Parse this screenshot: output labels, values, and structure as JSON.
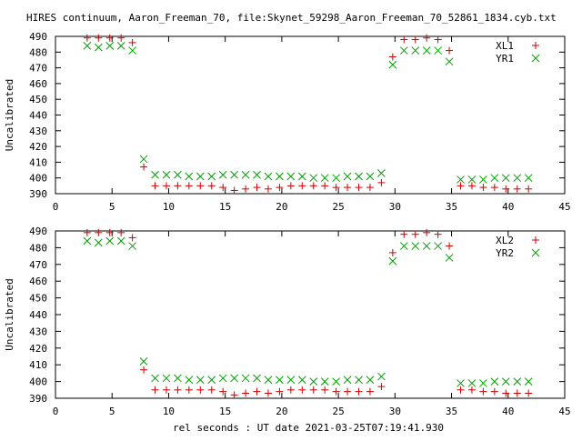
{
  "title": "HIRES continuum, Aaron_Freeman_70, file:Skynet_59298_Aaron_Freeman_70_52861_1834.cyb.txt",
  "xlabel": "rel seconds : UT date 2021-03-25T07:19:41.930",
  "colors": {
    "plus": "#cc0000",
    "cross": "#00a000",
    "axis": "#000000"
  },
  "chart_data": [
    {
      "type": "scatter",
      "ylabel": "Uncalibrated",
      "xlim": [
        0,
        45
      ],
      "ylim": [
        390,
        490
      ],
      "xticks": [
        0,
        5,
        10,
        15,
        20,
        25,
        30,
        35,
        40,
        45
      ],
      "yticks": [
        390,
        400,
        410,
        420,
        430,
        440,
        450,
        460,
        470,
        480,
        490
      ],
      "grid": false,
      "legend_position": "top-right",
      "series": [
        {
          "name": "XL1",
          "marker": "plus",
          "color": "#cc0000",
          "x": [
            2.8,
            3.8,
            4.8,
            5.8,
            6.8,
            7.8,
            8.8,
            9.8,
            10.8,
            11.8,
            12.8,
            13.8,
            14.8,
            15.8,
            16.8,
            17.8,
            18.8,
            19.8,
            20.8,
            21.8,
            22.8,
            23.8,
            24.8,
            25.8,
            26.8,
            27.8,
            28.8,
            29.8,
            30.8,
            31.8,
            32.8,
            33.8,
            34.8,
            35.8,
            36.8,
            37.8,
            38.8,
            39.8,
            40.8,
            41.8
          ],
          "y": [
            489,
            489,
            489,
            489,
            486,
            407,
            395,
            395,
            395,
            395,
            395,
            395,
            394,
            392,
            393,
            394,
            393,
            394,
            395,
            395,
            395,
            395,
            394,
            394,
            394,
            394,
            397,
            477,
            488,
            488,
            489,
            488,
            481,
            395,
            395,
            394,
            394,
            393,
            393,
            393
          ]
        },
        {
          "name": "YR1",
          "marker": "cross",
          "color": "#00a000",
          "x": [
            2.8,
            3.8,
            4.8,
            5.8,
            6.8,
            7.8,
            8.8,
            9.8,
            10.8,
            11.8,
            12.8,
            13.8,
            14.8,
            15.8,
            16.8,
            17.8,
            18.8,
            19.8,
            20.8,
            21.8,
            22.8,
            23.8,
            24.8,
            25.8,
            26.8,
            27.8,
            28.8,
            29.8,
            30.8,
            31.8,
            32.8,
            33.8,
            34.8,
            35.8,
            36.8,
            37.8,
            38.8,
            39.8,
            40.8,
            41.8
          ],
          "y": [
            484,
            483,
            484,
            484,
            481,
            412,
            402,
            402,
            402,
            401,
            401,
            401,
            402,
            402,
            402,
            402,
            401,
            401,
            401,
            401,
            400,
            400,
            400,
            401,
            401,
            401,
            403,
            472,
            481,
            481,
            481,
            481,
            474,
            399,
            399,
            399,
            400,
            400,
            400,
            400
          ]
        }
      ]
    },
    {
      "type": "scatter",
      "ylabel": "Uncalibrated",
      "xlim": [
        0,
        45
      ],
      "ylim": [
        390,
        490
      ],
      "xticks": [
        0,
        5,
        10,
        15,
        20,
        25,
        30,
        35,
        40,
        45
      ],
      "yticks": [
        390,
        400,
        410,
        420,
        430,
        440,
        450,
        460,
        470,
        480,
        490
      ],
      "grid": false,
      "legend_position": "top-right",
      "series": [
        {
          "name": "XL2",
          "marker": "plus",
          "color": "#cc0000",
          "x": [
            2.8,
            3.8,
            4.8,
            5.8,
            6.8,
            7.8,
            8.8,
            9.8,
            10.8,
            11.8,
            12.8,
            13.8,
            14.8,
            15.8,
            16.8,
            17.8,
            18.8,
            19.8,
            20.8,
            21.8,
            22.8,
            23.8,
            24.8,
            25.8,
            26.8,
            27.8,
            28.8,
            29.8,
            30.8,
            31.8,
            32.8,
            33.8,
            34.8,
            35.8,
            36.8,
            37.8,
            38.8,
            39.8,
            40.8,
            41.8
          ],
          "y": [
            489,
            489,
            489,
            489,
            486,
            407,
            395,
            395,
            395,
            395,
            395,
            395,
            394,
            392,
            393,
            394,
            393,
            394,
            395,
            395,
            395,
            395,
            394,
            394,
            394,
            394,
            397,
            477,
            488,
            488,
            489,
            488,
            481,
            395,
            395,
            394,
            394,
            393,
            393,
            393
          ]
        },
        {
          "name": "YR2",
          "marker": "cross",
          "color": "#00a000",
          "x": [
            2.8,
            3.8,
            4.8,
            5.8,
            6.8,
            7.8,
            8.8,
            9.8,
            10.8,
            11.8,
            12.8,
            13.8,
            14.8,
            15.8,
            16.8,
            17.8,
            18.8,
            19.8,
            20.8,
            21.8,
            22.8,
            23.8,
            24.8,
            25.8,
            26.8,
            27.8,
            28.8,
            29.8,
            30.8,
            31.8,
            32.8,
            33.8,
            34.8,
            35.8,
            36.8,
            37.8,
            38.8,
            39.8,
            40.8,
            41.8
          ],
          "y": [
            484,
            483,
            484,
            484,
            481,
            412,
            402,
            402,
            402,
            401,
            401,
            401,
            402,
            402,
            402,
            402,
            401,
            401,
            401,
            401,
            400,
            400,
            400,
            401,
            401,
            401,
            403,
            472,
            481,
            481,
            481,
            481,
            474,
            399,
            399,
            399,
            400,
            400,
            400,
            400
          ]
        }
      ]
    }
  ]
}
